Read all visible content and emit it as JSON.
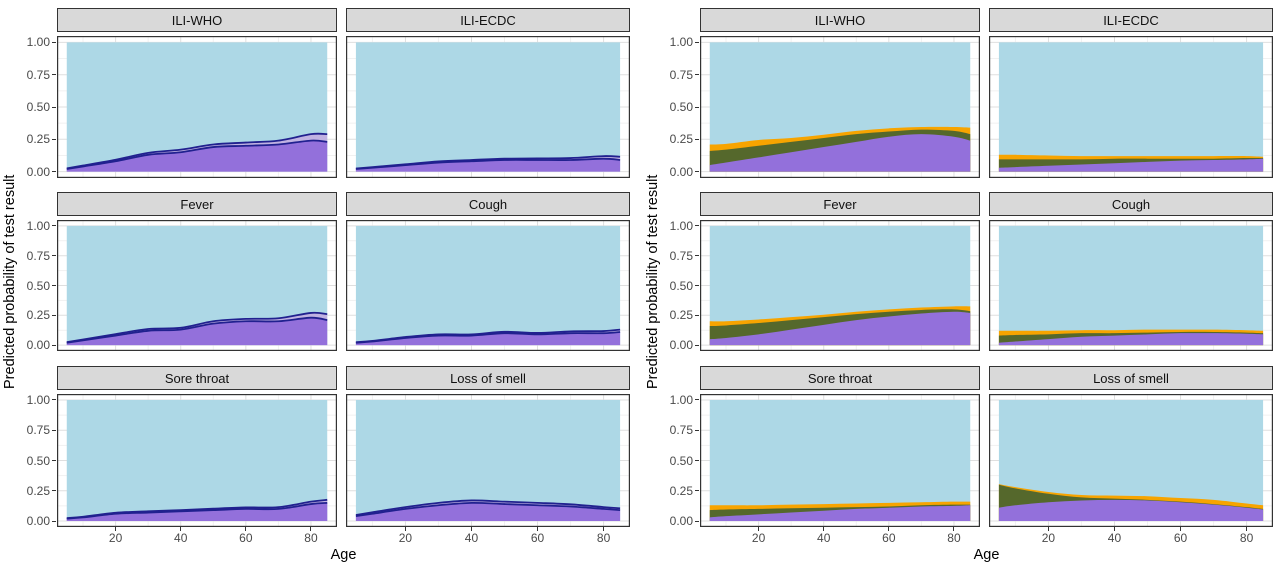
{
  "theme": {
    "background": "#FFFFFF",
    "panel_background": "#FFFFFF",
    "panel_border": "#333333",
    "strip_fill": "#D9D9D9",
    "strip_border": "#333333",
    "grid_major": "#DFDFDF",
    "grid_minor": "#F1F1F1",
    "tick_color": "#333333",
    "axis_text_color": "#4A4A4A",
    "axis_title_color": "#000000",
    "outline_color": "#21218F",
    "purple": "#9370DB",
    "lavender": "#C0B2E2",
    "olive": "#55682C",
    "orange": "#F7A400",
    "lightblue": "#ADD8E6"
  },
  "chart_data": [
    {
      "id": "left-figure",
      "type": "area",
      "subtype": "stacked-proportion",
      "ylabel": "Predicted probability of test result",
      "xlabel": "Age",
      "x_range": [
        2,
        88
      ],
      "ages": [
        5,
        10,
        20,
        30,
        40,
        50,
        60,
        70,
        80,
        85
      ],
      "x_ticks": {
        "values": [
          20,
          40,
          60,
          80
        ],
        "labels": [
          "20",
          "40",
          "60",
          "80"
        ]
      },
      "x_minor": [
        10,
        30,
        50,
        70
      ],
      "y_ticks": {
        "values": [
          1.0,
          0.75,
          0.5,
          0.25,
          0.0
        ],
        "labels": [
          "1.00",
          "0.75",
          "0.50",
          "0.25",
          "0.00"
        ]
      },
      "y_minor": [
        0.875,
        0.625,
        0.375,
        0.125
      ],
      "grid": true,
      "legend": "none",
      "layers": [
        {
          "name": "purple-area",
          "color": "#9370DB",
          "outline": "#21218F"
        },
        {
          "name": "lavender-band",
          "color": "#C0B2E2",
          "outline": "#21218F"
        },
        {
          "name": "lightblue-area",
          "color": "#ADD8E6",
          "remainder": true
        }
      ],
      "facets": [
        {
          "title": "ILI-WHO",
          "values": {
            "purple-area": [
              0.02,
              0.04,
              0.08,
              0.13,
              0.15,
              0.19,
              0.2,
              0.21,
              0.24,
              0.23
            ],
            "lavender-band": [
              0.005,
              0.007,
              0.012,
              0.015,
              0.02,
              0.02,
              0.025,
              0.03,
              0.05,
              0.06
            ]
          }
        },
        {
          "title": "ILI-ECDC",
          "values": {
            "purple-area": [
              0.02,
              0.03,
              0.05,
              0.07,
              0.08,
              0.09,
              0.09,
              0.09,
              0.1,
              0.09
            ],
            "lavender-band": [
              0.004,
              0.005,
              0.007,
              0.009,
              0.01,
              0.01,
              0.012,
              0.015,
              0.02,
              0.025
            ]
          }
        },
        {
          "title": "Fever",
          "values": {
            "purple-area": [
              0.02,
              0.04,
              0.08,
              0.12,
              0.13,
              0.18,
              0.2,
              0.2,
              0.23,
              0.21
            ],
            "lavender-band": [
              0.005,
              0.007,
              0.012,
              0.015,
              0.015,
              0.02,
              0.02,
              0.025,
              0.04,
              0.05
            ]
          }
        },
        {
          "title": "Cough",
          "values": {
            "purple-area": [
              0.02,
              0.03,
              0.06,
              0.08,
              0.08,
              0.1,
              0.09,
              0.1,
              0.1,
              0.11
            ],
            "lavender-band": [
              0.004,
              0.005,
              0.008,
              0.01,
              0.01,
              0.012,
              0.012,
              0.015,
              0.018,
              0.02
            ]
          }
        },
        {
          "title": "Sore throat",
          "values": {
            "purple-area": [
              0.02,
              0.03,
              0.06,
              0.07,
              0.08,
              0.09,
              0.1,
              0.1,
              0.14,
              0.15
            ],
            "lavender-band": [
              0.004,
              0.005,
              0.008,
              0.01,
              0.01,
              0.012,
              0.012,
              0.015,
              0.02,
              0.025
            ]
          }
        },
        {
          "title": "Loss of smell",
          "values": {
            "purple-area": [
              0.04,
              0.06,
              0.1,
              0.13,
              0.15,
              0.14,
              0.13,
              0.12,
              0.1,
              0.09
            ],
            "lavender-band": [
              0.01,
              0.012,
              0.015,
              0.02,
              0.02,
              0.02,
              0.02,
              0.018,
              0.015,
              0.015
            ]
          }
        }
      ]
    },
    {
      "id": "right-figure",
      "type": "area",
      "subtype": "stacked-proportion",
      "ylabel": "Predicted probability of test result",
      "xlabel": "Age",
      "x_range": [
        2,
        88
      ],
      "ages": [
        5,
        10,
        20,
        30,
        40,
        50,
        60,
        70,
        80,
        85
      ],
      "x_ticks": {
        "values": [
          20,
          40,
          60,
          80
        ],
        "labels": [
          "20",
          "40",
          "60",
          "80"
        ]
      },
      "x_minor": [
        10,
        30,
        50,
        70
      ],
      "y_ticks": {
        "values": [
          1.0,
          0.75,
          0.5,
          0.25,
          0.0
        ],
        "labels": [
          "1.00",
          "0.75",
          "0.50",
          "0.25",
          "0.00"
        ]
      },
      "y_minor": [
        0.875,
        0.625,
        0.375,
        0.125
      ],
      "grid": true,
      "legend": "none",
      "layers": [
        {
          "name": "purple-area",
          "color": "#9370DB"
        },
        {
          "name": "olive-area",
          "color": "#55682C"
        },
        {
          "name": "orange-area",
          "color": "#F7A400"
        },
        {
          "name": "lightblue-area",
          "color": "#ADD8E6",
          "remainder": true
        }
      ],
      "facets": [
        {
          "title": "ILI-WHO",
          "values": {
            "purple-area": [
              0.05,
              0.07,
              0.11,
              0.15,
              0.19,
              0.23,
              0.27,
              0.29,
              0.27,
              0.24
            ],
            "olive-area": [
              0.11,
              0.1,
              0.09,
              0.08,
              0.07,
              0.06,
              0.04,
              0.035,
              0.045,
              0.05
            ],
            "orange-area": [
              0.05,
              0.045,
              0.045,
              0.03,
              0.025,
              0.025,
              0.025,
              0.02,
              0.03,
              0.05
            ]
          }
        },
        {
          "title": "ILI-ECDC",
          "values": {
            "purple-area": [
              0.03,
              0.035,
              0.045,
              0.055,
              0.065,
              0.075,
              0.085,
              0.09,
              0.095,
              0.1
            ],
            "olive-area": [
              0.065,
              0.06,
              0.05,
              0.04,
              0.035,
              0.025,
              0.015,
              0.01,
              0.01,
              0.005
            ],
            "orange-area": [
              0.035,
              0.035,
              0.03,
              0.025,
              0.02,
              0.02,
              0.02,
              0.02,
              0.015,
              0.01
            ]
          }
        },
        {
          "title": "Fever",
          "values": {
            "purple-area": [
              0.05,
              0.06,
              0.09,
              0.13,
              0.17,
              0.21,
              0.24,
              0.265,
              0.28,
              0.27
            ],
            "olive-area": [
              0.11,
              0.105,
              0.095,
              0.08,
              0.065,
              0.05,
              0.04,
              0.03,
              0.02,
              0.015
            ],
            "orange-area": [
              0.04,
              0.035,
              0.03,
              0.025,
              0.02,
              0.02,
              0.02,
              0.02,
              0.025,
              0.04
            ]
          }
        },
        {
          "title": "Cough",
          "values": {
            "purple-area": [
              0.02,
              0.03,
              0.05,
              0.07,
              0.08,
              0.09,
              0.1,
              0.1,
              0.095,
              0.09
            ],
            "olive-area": [
              0.06,
              0.055,
              0.04,
              0.03,
              0.02,
              0.015,
              0.01,
              0.01,
              0.01,
              0.01
            ],
            "orange-area": [
              0.04,
              0.035,
              0.03,
              0.025,
              0.025,
              0.025,
              0.02,
              0.02,
              0.02,
              0.02
            ]
          }
        },
        {
          "title": "Sore throat",
          "values": {
            "purple-area": [
              0.03,
              0.04,
              0.055,
              0.07,
              0.085,
              0.1,
              0.11,
              0.12,
              0.125,
              0.13
            ],
            "olive-area": [
              0.06,
              0.055,
              0.045,
              0.035,
              0.025,
              0.015,
              0.01,
              0.01,
              0.01,
              0.005
            ],
            "orange-area": [
              0.04,
              0.035,
              0.03,
              0.03,
              0.03,
              0.03,
              0.03,
              0.025,
              0.025,
              0.025
            ]
          }
        },
        {
          "title": "Loss of smell",
          "values": {
            "purple-area": [
              0.11,
              0.13,
              0.155,
              0.17,
              0.175,
              0.17,
              0.155,
              0.135,
              0.11,
              0.095
            ],
            "olive-area": [
              0.19,
              0.14,
              0.07,
              0.025,
              0.01,
              0.005,
              0.005,
              0.005,
              0.005,
              0.005
            ],
            "orange-area": [
              0.005,
              0.01,
              0.015,
              0.02,
              0.025,
              0.03,
              0.03,
              0.035,
              0.03,
              0.03
            ]
          }
        }
      ]
    }
  ]
}
